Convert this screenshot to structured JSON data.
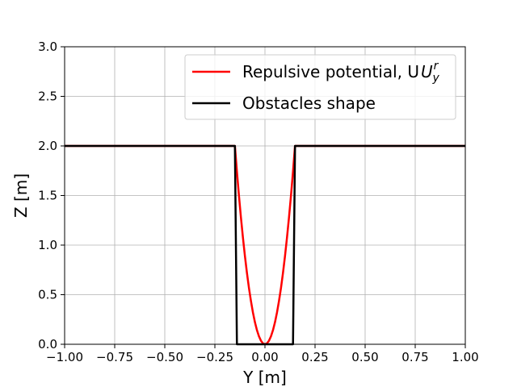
{
  "chart_data": {
    "type": "line",
    "xlabel": "Y [m]",
    "ylabel": "Z [m]",
    "xlim": [
      -1.0,
      1.0
    ],
    "ylim": [
      0.0,
      3.0
    ],
    "xticks": [
      -1.0,
      -0.75,
      -0.5,
      -0.25,
      0.0,
      0.25,
      0.5,
      0.75,
      1.0
    ],
    "xtick_labels": [
      "−1.00",
      "−0.75",
      "−0.50",
      "−0.25",
      "0.00",
      "0.25",
      "0.50",
      "0.75",
      "1.00"
    ],
    "yticks": [
      0.0,
      0.5,
      1.0,
      1.5,
      2.0,
      2.5,
      3.0
    ],
    "ytick_labels": [
      "0.0",
      "0.5",
      "1.0",
      "1.5",
      "2.0",
      "2.5",
      "3.0"
    ],
    "grid": true,
    "legend_position": "top-right",
    "series": [
      {
        "name": "Repulsive potential, U",
        "name_sup": "r",
        "name_sub": "y",
        "color": "#ff0000",
        "x": [
          -1.0,
          -0.15,
          -0.15,
          -0.14,
          -0.13,
          -0.12,
          -0.11,
          -0.1,
          -0.09,
          -0.08,
          -0.07,
          -0.06,
          -0.05,
          -0.04,
          -0.03,
          -0.02,
          -0.01,
          0.0,
          0.01,
          0.02,
          0.03,
          0.04,
          0.05,
          0.06,
          0.07,
          0.08,
          0.09,
          0.1,
          0.11,
          0.12,
          0.13,
          0.14,
          0.15,
          0.15,
          1.0
        ],
        "y": [
          2.0,
          2.0,
          2.0,
          1.742,
          1.502,
          1.28,
          1.076,
          0.889,
          0.72,
          0.569,
          0.436,
          0.32,
          0.222,
          0.142,
          0.08,
          0.036,
          0.009,
          0.0,
          0.009,
          0.036,
          0.08,
          0.142,
          0.222,
          0.32,
          0.436,
          0.569,
          0.72,
          0.889,
          1.076,
          1.28,
          1.502,
          1.742,
          2.0,
          2.0,
          2.0
        ]
      },
      {
        "name": "Obstacles shape",
        "color": "#000000",
        "x": [
          -1.0,
          -0.15,
          -0.14,
          0.14,
          0.15,
          1.0
        ],
        "y": [
          2.0,
          2.0,
          0.0,
          0.0,
          2.0,
          2.0
        ]
      }
    ]
  }
}
